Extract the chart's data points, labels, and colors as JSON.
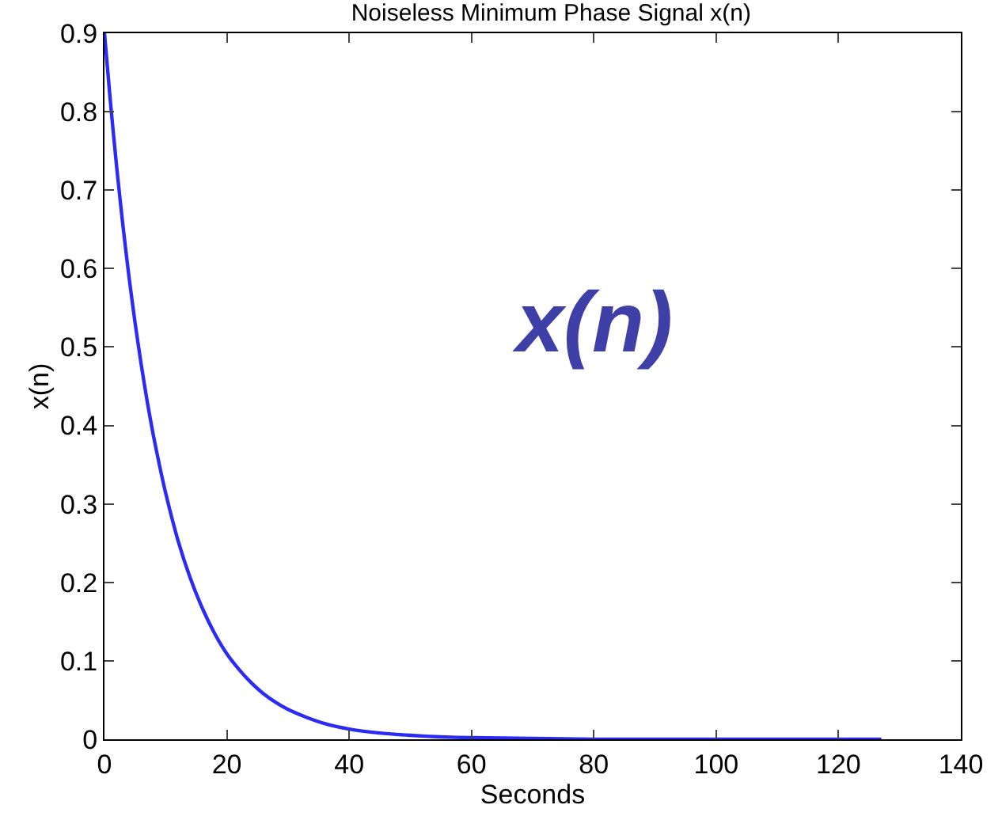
{
  "chart_data": {
    "type": "line",
    "title": "Noiseless Minimum Phase Signal x(n)",
    "xlabel": "Seconds",
    "ylabel": "x(n)",
    "x": [
      0,
      1,
      2,
      3,
      4,
      5,
      6,
      7,
      8,
      9,
      10,
      12,
      14,
      16,
      18,
      20,
      22,
      24,
      26,
      28,
      30,
      33,
      36,
      40,
      45,
      50,
      55,
      60,
      70,
      80,
      100,
      127
    ],
    "series": [
      {
        "color": "#2b2bf5",
        "values": [
          0.9,
          0.81,
          0.729,
          0.656,
          0.59,
          0.531,
          0.478,
          0.43,
          0.387,
          0.349,
          0.314,
          0.254,
          0.206,
          0.167,
          0.135,
          0.109,
          0.089,
          0.072,
          0.058,
          0.047,
          0.038,
          0.028,
          0.02,
          0.013,
          0.008,
          0.005,
          0.003,
          0.002,
          0.001,
          0,
          0,
          0
        ]
      }
    ],
    "annotations": [
      "x(n)"
    ],
    "xlim": [
      0,
      140
    ],
    "xticks": [
      0,
      20,
      40,
      60,
      80,
      100,
      120,
      140
    ],
    "ylim": [
      0,
      0.9
    ],
    "yticks": [
      0,
      0.1,
      0.2,
      0.3,
      0.4,
      0.5,
      0.6,
      0.7,
      0.8,
      0.9
    ],
    "marker": "none",
    "line_style": "solid"
  }
}
